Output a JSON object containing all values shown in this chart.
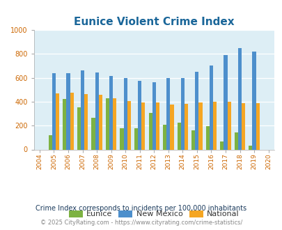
{
  "title": "Eunice Violent Crime Index",
  "years": [
    2004,
    2005,
    2006,
    2007,
    2008,
    2009,
    2010,
    2011,
    2012,
    2013,
    2014,
    2015,
    2016,
    2017,
    2018,
    2019,
    2020
  ],
  "eunice": [
    null,
    120,
    420,
    350,
    265,
    430,
    180,
    175,
    305,
    205,
    225,
    160,
    195,
    65,
    140,
    30,
    null
  ],
  "new_mexico": [
    null,
    640,
    640,
    660,
    645,
    615,
    598,
    575,
    565,
    600,
    600,
    650,
    700,
    790,
    850,
    820,
    null
  ],
  "national": [
    null,
    468,
    475,
    465,
    455,
    430,
    405,
    395,
    395,
    375,
    380,
    395,
    400,
    400,
    385,
    385,
    null
  ],
  "eunice_color": "#7db242",
  "nm_color": "#4d8fcc",
  "national_color": "#f5a623",
  "bg_color": "#ddeef5",
  "fig_bg": "#ffffff",
  "ylim": [
    0,
    1000
  ],
  "yticks": [
    0,
    200,
    400,
    600,
    800,
    1000
  ],
  "title_color": "#1a6699",
  "title_fontsize": 11,
  "legend_labels": [
    "Eunice",
    "New Mexico",
    "National"
  ],
  "footnote1": "Crime Index corresponds to incidents per 100,000 inhabitants",
  "footnote2": "© 2025 CityRating.com - https://www.cityrating.com/crime-statistics/",
  "footnote1_color": "#1a3a5c",
  "footnote2_color": "#888888",
  "bar_width": 0.25,
  "tick_label_color": "#cc6600",
  "ytick_color": "#cc6600"
}
